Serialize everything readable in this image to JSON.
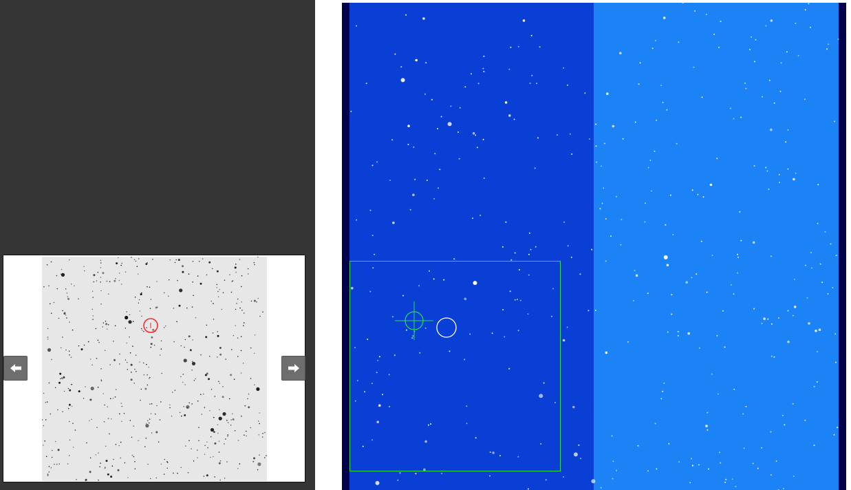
{
  "colors": {
    "panel_bg": "#353535",
    "chart_bg": "#e7e7e7",
    "left_chip": "#0a3fd6",
    "right_chip": "#1b83f5",
    "frame_bg": "#00004a",
    "marker_red": "#ff2020",
    "marker_green": "#22e04a",
    "marker_white": "#ffffff"
  },
  "icons": {
    "prev": "arrow-left-icon",
    "next": "arrow-right-icon",
    "target_marker": "circle-target-icon",
    "crosshair": "crosshair-icon",
    "selected_star": "circle-marker-icon"
  }
}
